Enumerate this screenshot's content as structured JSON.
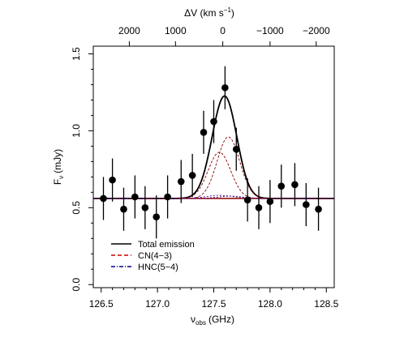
{
  "chart_data": {
    "type": "scatter",
    "xlabel": "ν",
    "xlabel_sub": "obs",
    "xlabel_unit": "(GHz)",
    "ylabel": "F",
    "ylabel_sub": "ν",
    "ylabel_unit": "(mJy)",
    "top_axis_label": "ΔV (km s",
    "top_axis_label_sup": "−1",
    "top_axis_label_close": ")",
    "xlim": [
      126.43,
      128.57
    ],
    "ylim": [
      -0.02,
      1.55
    ],
    "x_ticks": [
      126.5,
      127.0,
      127.5,
      128.0,
      128.5
    ],
    "x_tick_labels": [
      "126.5",
      "127.0",
      "127.5",
      "128.0",
      "128.5"
    ],
    "y_ticks": [
      0.0,
      0.5,
      1.0,
      1.5
    ],
    "y_tick_labels": [
      "0.0",
      "0.5",
      "1.0",
      "1.5"
    ],
    "top_ticks_x": [
      126.75,
      127.16,
      127.58,
      128.0,
      128.41
    ],
    "top_tick_labels": [
      "2000",
      "1000",
      "0",
      "−1000",
      "−2000"
    ],
    "baseline": 0.56,
    "points": [
      {
        "x": 126.52,
        "y": 0.56,
        "err": 0.14
      },
      {
        "x": 126.6,
        "y": 0.68,
        "err": 0.14
      },
      {
        "x": 126.7,
        "y": 0.49,
        "err": 0.14
      },
      {
        "x": 126.8,
        "y": 0.57,
        "err": 0.14
      },
      {
        "x": 126.89,
        "y": 0.5,
        "err": 0.14
      },
      {
        "x": 126.99,
        "y": 0.44,
        "err": 0.14
      },
      {
        "x": 127.09,
        "y": 0.57,
        "err": 0.14
      },
      {
        "x": 127.21,
        "y": 0.67,
        "err": 0.14
      },
      {
        "x": 127.31,
        "y": 0.71,
        "err": 0.14
      },
      {
        "x": 127.41,
        "y": 0.99,
        "err": 0.14
      },
      {
        "x": 127.5,
        "y": 1.06,
        "err": 0.14
      },
      {
        "x": 127.6,
        "y": 1.28,
        "err": 0.14
      },
      {
        "x": 127.7,
        "y": 0.88,
        "err": 0.14
      },
      {
        "x": 127.8,
        "y": 0.55,
        "err": 0.14
      },
      {
        "x": 127.9,
        "y": 0.5,
        "err": 0.14
      },
      {
        "x": 128.0,
        "y": 0.54,
        "err": 0.14
      },
      {
        "x": 128.1,
        "y": 0.64,
        "err": 0.14
      },
      {
        "x": 128.22,
        "y": 0.65,
        "err": 0.14
      },
      {
        "x": 128.32,
        "y": 0.52,
        "err": 0.14
      },
      {
        "x": 128.43,
        "y": 0.49,
        "err": 0.14
      }
    ],
    "models": [
      {
        "name": "Total emission",
        "color": "#000000",
        "dash": "",
        "width": 1.8,
        "components": [
          {
            "center": 127.55,
            "amp": 0.3,
            "sigma": 0.1
          },
          {
            "center": 127.63,
            "amp": 0.4,
            "sigma": 0.1
          },
          {
            "center": 127.55,
            "amp": 0.02,
            "sigma": 0.12
          }
        ]
      },
      {
        "name": "",
        "color": "#8b0000",
        "dash": "3,2",
        "width": 0.9,
        "components": [
          {
            "center": 127.63,
            "amp": 0.4,
            "sigma": 0.1
          }
        ]
      },
      {
        "name": "",
        "color": "#8b0000",
        "dash": "3,2",
        "width": 0.9,
        "components": [
          {
            "center": 127.55,
            "amp": 0.3,
            "sigma": 0.1
          }
        ]
      },
      {
        "name": "",
        "color": "#4b0082",
        "dash": "2,2",
        "width": 0.9,
        "components": [
          {
            "center": 127.55,
            "amp": 0.02,
            "sigma": 0.12
          }
        ]
      },
      {
        "name": "",
        "color": "#4b0082",
        "dash": "2,2",
        "width": 0.9,
        "components": [
          {
            "center": 127.65,
            "amp": 0.015,
            "sigma": 0.11
          }
        ]
      }
    ],
    "baseline_line": {
      "color": "#8b0000",
      "width": 1.5
    },
    "legend": {
      "position": "bottom-left",
      "entries": [
        {
          "label": "Total emission",
          "color": "#000000",
          "dash": ""
        },
        {
          "label": "CN(4−3)",
          "color": "#cc0000",
          "dash": "5,3"
        },
        {
          "label": "HNC(5−4)",
          "color": "#00008b",
          "dash": "5,2,1,2"
        }
      ]
    }
  }
}
